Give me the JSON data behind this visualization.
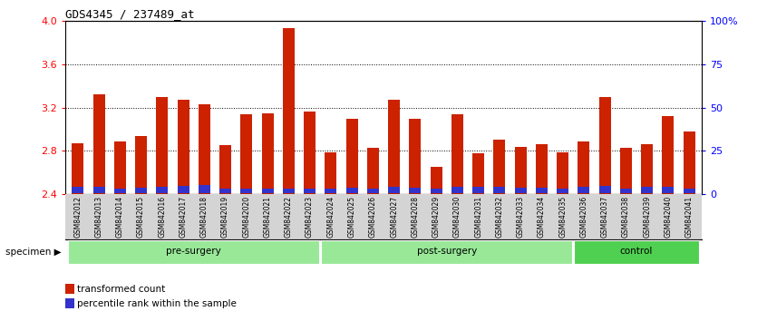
{
  "title": "GDS4345 / 237489_at",
  "samples": [
    "GSM842012",
    "GSM842013",
    "GSM842014",
    "GSM842015",
    "GSM842016",
    "GSM842017",
    "GSM842018",
    "GSM842019",
    "GSM842020",
    "GSM842021",
    "GSM842022",
    "GSM842023",
    "GSM842024",
    "GSM842025",
    "GSM842026",
    "GSM842027",
    "GSM842028",
    "GSM842029",
    "GSM842030",
    "GSM842031",
    "GSM842032",
    "GSM842033",
    "GSM842034",
    "GSM842035",
    "GSM842036",
    "GSM842037",
    "GSM842038",
    "GSM842039",
    "GSM842040",
    "GSM842041"
  ],
  "red_values": [
    2.87,
    3.32,
    2.89,
    2.94,
    3.3,
    3.27,
    3.23,
    2.85,
    3.14,
    3.15,
    3.93,
    3.16,
    2.79,
    3.1,
    2.83,
    3.27,
    3.1,
    2.65,
    3.14,
    2.78,
    2.9,
    2.84,
    2.86,
    2.79,
    2.89,
    3.3,
    2.83,
    2.86,
    3.12,
    2.98
  ],
  "blue_heights": [
    0.055,
    0.055,
    0.045,
    0.052,
    0.058,
    0.065,
    0.072,
    0.042,
    0.044,
    0.044,
    0.042,
    0.044,
    0.044,
    0.048,
    0.042,
    0.058,
    0.048,
    0.044,
    0.058,
    0.058,
    0.058,
    0.052,
    0.052,
    0.042,
    0.058,
    0.065,
    0.042,
    0.058,
    0.058,
    0.042
  ],
  "groups": [
    {
      "label": "pre-surgery",
      "start": 0,
      "end": 11
    },
    {
      "label": "post-surgery",
      "start": 12,
      "end": 23
    },
    {
      "label": "control",
      "start": 24,
      "end": 29
    }
  ],
  "group_colors": [
    "#98E898",
    "#98E898",
    "#50D050"
  ],
  "ylim_left": [
    2.4,
    4.0
  ],
  "ylim_right": [
    0,
    100
  ],
  "right_ticks": [
    0,
    25,
    50,
    75,
    100
  ],
  "right_tick_labels": [
    "0",
    "25",
    "50",
    "75",
    "100%"
  ],
  "left_ticks": [
    2.4,
    2.8,
    3.2,
    3.6,
    4.0
  ],
  "grid_lines": [
    2.8,
    3.2,
    3.6
  ],
  "bar_color_red": "#CC2200",
  "bar_color_blue": "#3333CC",
  "bg_plot": "#FFFFFF",
  "xticklabel_bg": "#D4D4D4",
  "legend_red": "transformed count",
  "legend_blue": "percentile rank within the sample",
  "specimen_label": "specimen"
}
